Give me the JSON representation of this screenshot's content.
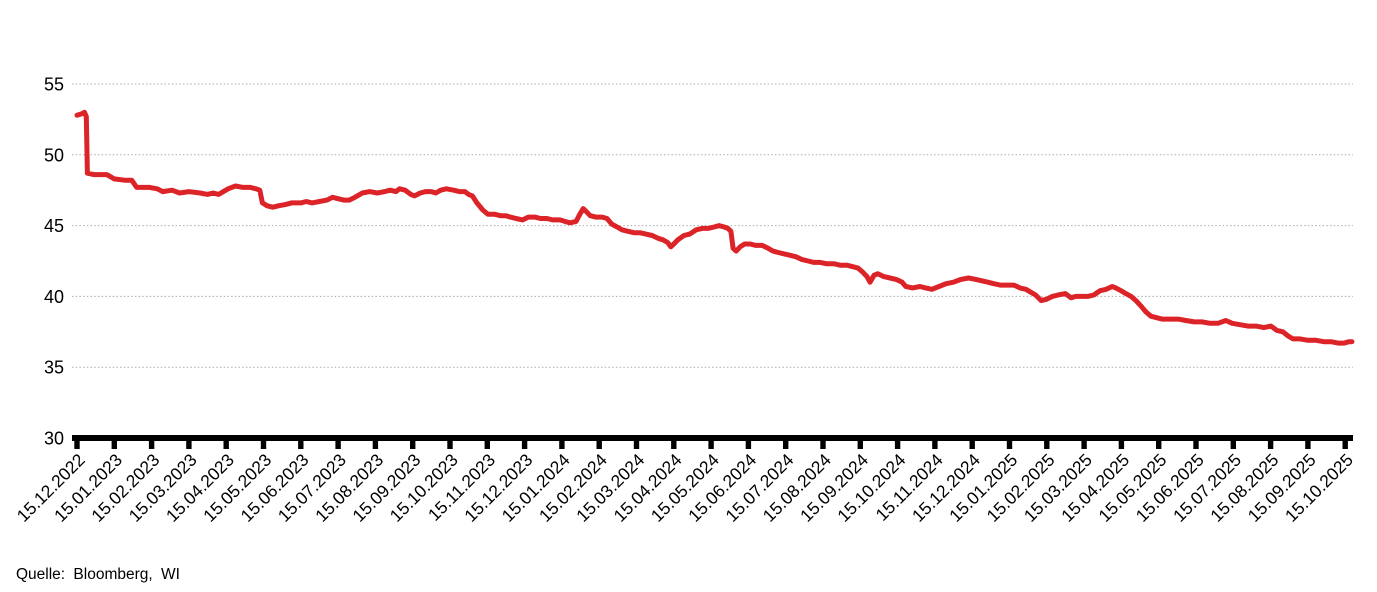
{
  "chart_data": {
    "type": "line",
    "ylim": [
      30,
      55
    ],
    "y_ticks": [
      55,
      50,
      45,
      40,
      35,
      30
    ],
    "grid": "horizontal-dotted",
    "legend": "none",
    "x_tick_labels": [
      "15.12.2022",
      "15.01.2023",
      "15.02.2023",
      "15.03.2023",
      "15.04.2023",
      "15.05.2023",
      "15.06.2023",
      "15.07.2023",
      "15.08.2023",
      "15.09.2023",
      "15.10.2023",
      "15.11.2023",
      "15.12.2023",
      "15.01.2024",
      "15.02.2024",
      "15.03.2024",
      "15.04.2024",
      "15.05.2024",
      "15.06.2024",
      "15.07.2024",
      "15.08.2024",
      "15.09.2024",
      "15.10.2024",
      "15.11.2024",
      "15.12.2024",
      "15.01.2025",
      "15.02.2025",
      "15.03.2025",
      "15.04.2025",
      "15.05.2025",
      "15.06.2025",
      "15.07.2025",
      "15.08.2025",
      "15.09.2025",
      "15.10.2025"
    ],
    "series": [
      {
        "color": "#dc2328",
        "x_unit": "months-since-15.12.2022",
        "points": [
          [
            0.0,
            52.8
          ],
          [
            0.13,
            52.9
          ],
          [
            0.2,
            53.0
          ],
          [
            0.25,
            52.7
          ],
          [
            0.28,
            48.7
          ],
          [
            0.45,
            48.6
          ],
          [
            0.8,
            48.6
          ],
          [
            1.0,
            48.3
          ],
          [
            1.3,
            48.2
          ],
          [
            1.47,
            48.2
          ],
          [
            1.6,
            47.7
          ],
          [
            1.95,
            47.7
          ],
          [
            2.15,
            47.6
          ],
          [
            2.3,
            47.4
          ],
          [
            2.55,
            47.5
          ],
          [
            2.75,
            47.3
          ],
          [
            3.0,
            47.4
          ],
          [
            3.3,
            47.3
          ],
          [
            3.5,
            47.2
          ],
          [
            3.65,
            47.3
          ],
          [
            3.8,
            47.2
          ],
          [
            4.05,
            47.6
          ],
          [
            4.25,
            47.8
          ],
          [
            4.45,
            47.7
          ],
          [
            4.65,
            47.7
          ],
          [
            4.8,
            47.6
          ],
          [
            4.9,
            47.5
          ],
          [
            4.97,
            46.6
          ],
          [
            5.1,
            46.4
          ],
          [
            5.25,
            46.3
          ],
          [
            5.4,
            46.4
          ],
          [
            5.6,
            46.5
          ],
          [
            5.75,
            46.6
          ],
          [
            6.0,
            46.6
          ],
          [
            6.15,
            46.7
          ],
          [
            6.3,
            46.6
          ],
          [
            6.5,
            46.7
          ],
          [
            6.7,
            46.8
          ],
          [
            6.85,
            47.0
          ],
          [
            7.0,
            46.9
          ],
          [
            7.15,
            46.8
          ],
          [
            7.3,
            46.8
          ],
          [
            7.45,
            47.0
          ],
          [
            7.65,
            47.3
          ],
          [
            7.85,
            47.4
          ],
          [
            8.05,
            47.3
          ],
          [
            8.25,
            47.4
          ],
          [
            8.4,
            47.5
          ],
          [
            8.55,
            47.4
          ],
          [
            8.65,
            47.6
          ],
          [
            8.8,
            47.5
          ],
          [
            8.95,
            47.2
          ],
          [
            9.05,
            47.1
          ],
          [
            9.2,
            47.3
          ],
          [
            9.35,
            47.4
          ],
          [
            9.5,
            47.4
          ],
          [
            9.62,
            47.3
          ],
          [
            9.75,
            47.5
          ],
          [
            9.9,
            47.6
          ],
          [
            10.1,
            47.5
          ],
          [
            10.25,
            47.4
          ],
          [
            10.4,
            47.4
          ],
          [
            10.5,
            47.2
          ],
          [
            10.6,
            47.1
          ],
          [
            10.72,
            46.6
          ],
          [
            10.88,
            46.1
          ],
          [
            11.02,
            45.8
          ],
          [
            11.2,
            45.8
          ],
          [
            11.35,
            45.7
          ],
          [
            11.5,
            45.7
          ],
          [
            11.62,
            45.6
          ],
          [
            11.77,
            45.5
          ],
          [
            11.95,
            45.4
          ],
          [
            12.1,
            45.6
          ],
          [
            12.28,
            45.6
          ],
          [
            12.42,
            45.5
          ],
          [
            12.6,
            45.5
          ],
          [
            12.76,
            45.4
          ],
          [
            12.95,
            45.4
          ],
          [
            13.08,
            45.3
          ],
          [
            13.22,
            45.2
          ],
          [
            13.38,
            45.3
          ],
          [
            13.48,
            45.8
          ],
          [
            13.57,
            46.2
          ],
          [
            13.65,
            46.0
          ],
          [
            13.76,
            45.7
          ],
          [
            13.91,
            45.6
          ],
          [
            14.08,
            45.6
          ],
          [
            14.21,
            45.5
          ],
          [
            14.34,
            45.1
          ],
          [
            14.48,
            44.9
          ],
          [
            14.61,
            44.7
          ],
          [
            14.77,
            44.6
          ],
          [
            14.93,
            44.5
          ],
          [
            15.09,
            44.5
          ],
          [
            15.25,
            44.4
          ],
          [
            15.42,
            44.3
          ],
          [
            15.58,
            44.1
          ],
          [
            15.71,
            44.0
          ],
          [
            15.84,
            43.8
          ],
          [
            15.92,
            43.5
          ],
          [
            16.0,
            43.7
          ],
          [
            16.11,
            44.0
          ],
          [
            16.27,
            44.3
          ],
          [
            16.43,
            44.4
          ],
          [
            16.6,
            44.7
          ],
          [
            16.76,
            44.8
          ],
          [
            16.92,
            44.8
          ],
          [
            17.08,
            44.9
          ],
          [
            17.21,
            45.0
          ],
          [
            17.35,
            44.9
          ],
          [
            17.45,
            44.8
          ],
          [
            17.53,
            44.6
          ],
          [
            17.59,
            43.4
          ],
          [
            17.67,
            43.2
          ],
          [
            17.78,
            43.5
          ],
          [
            17.9,
            43.7
          ],
          [
            18.05,
            43.7
          ],
          [
            18.2,
            43.6
          ],
          [
            18.37,
            43.6
          ],
          [
            18.53,
            43.4
          ],
          [
            18.66,
            43.2
          ],
          [
            18.8,
            43.1
          ],
          [
            18.96,
            43.0
          ],
          [
            19.12,
            42.9
          ],
          [
            19.28,
            42.8
          ],
          [
            19.44,
            42.6
          ],
          [
            19.6,
            42.5
          ],
          [
            19.76,
            42.4
          ],
          [
            19.92,
            42.4
          ],
          [
            20.11,
            42.3
          ],
          [
            20.3,
            42.3
          ],
          [
            20.46,
            42.2
          ],
          [
            20.64,
            42.2
          ],
          [
            20.8,
            42.1
          ],
          [
            20.94,
            42.0
          ],
          [
            21.07,
            41.7
          ],
          [
            21.18,
            41.4
          ],
          [
            21.26,
            41.0
          ],
          [
            21.37,
            41.5
          ],
          [
            21.47,
            41.6
          ],
          [
            21.63,
            41.4
          ],
          [
            21.8,
            41.3
          ],
          [
            21.96,
            41.2
          ],
          [
            22.12,
            41.0
          ],
          [
            22.22,
            40.7
          ],
          [
            22.4,
            40.6
          ],
          [
            22.6,
            40.7
          ],
          [
            22.75,
            40.6
          ],
          [
            22.92,
            40.5
          ],
          [
            23.11,
            40.7
          ],
          [
            23.3,
            40.9
          ],
          [
            23.5,
            41.0
          ],
          [
            23.7,
            41.2
          ],
          [
            23.9,
            41.3
          ],
          [
            24.1,
            41.2
          ],
          [
            24.26,
            41.1
          ],
          [
            24.42,
            41.0
          ],
          [
            24.58,
            40.9
          ],
          [
            24.75,
            40.8
          ],
          [
            24.93,
            40.8
          ],
          [
            25.12,
            40.8
          ],
          [
            25.28,
            40.6
          ],
          [
            25.44,
            40.5
          ],
          [
            25.57,
            40.3
          ],
          [
            25.7,
            40.1
          ],
          [
            25.85,
            39.7
          ],
          [
            26.0,
            39.8
          ],
          [
            26.15,
            40.0
          ],
          [
            26.3,
            40.1
          ],
          [
            26.5,
            40.2
          ],
          [
            26.65,
            39.9
          ],
          [
            26.78,
            40.0
          ],
          [
            26.95,
            40.0
          ],
          [
            27.1,
            40.0
          ],
          [
            27.26,
            40.1
          ],
          [
            27.43,
            40.4
          ],
          [
            27.59,
            40.5
          ],
          [
            27.75,
            40.7
          ],
          [
            27.85,
            40.6
          ],
          [
            27.99,
            40.4
          ],
          [
            28.12,
            40.2
          ],
          [
            28.26,
            40.0
          ],
          [
            28.39,
            39.7
          ],
          [
            28.53,
            39.3
          ],
          [
            28.66,
            38.9
          ],
          [
            28.79,
            38.6
          ],
          [
            28.93,
            38.5
          ],
          [
            29.09,
            38.4
          ],
          [
            29.3,
            38.4
          ],
          [
            29.52,
            38.4
          ],
          [
            29.73,
            38.3
          ],
          [
            29.95,
            38.2
          ],
          [
            30.16,
            38.2
          ],
          [
            30.38,
            38.1
          ],
          [
            30.59,
            38.1
          ],
          [
            30.8,
            38.3
          ],
          [
            30.97,
            38.1
          ],
          [
            31.18,
            38.0
          ],
          [
            31.39,
            37.9
          ],
          [
            31.61,
            37.9
          ],
          [
            31.82,
            37.8
          ],
          [
            32.01,
            37.9
          ],
          [
            32.17,
            37.6
          ],
          [
            32.33,
            37.5
          ],
          [
            32.47,
            37.2
          ],
          [
            32.6,
            37.0
          ],
          [
            32.79,
            37.0
          ],
          [
            33.0,
            36.9
          ],
          [
            33.22,
            36.9
          ],
          [
            33.43,
            36.8
          ],
          [
            33.62,
            36.8
          ],
          [
            33.81,
            36.7
          ],
          [
            33.97,
            36.7
          ],
          [
            34.1,
            36.8
          ],
          [
            34.18,
            36.8
          ]
        ]
      }
    ]
  },
  "colors": {
    "line": "#dc2328",
    "gridline": "#ababab",
    "axis": "#000000",
    "text": "#000000",
    "background": "#ffffff"
  },
  "footer": {
    "source": "Quelle: Bloomberg, WI"
  }
}
